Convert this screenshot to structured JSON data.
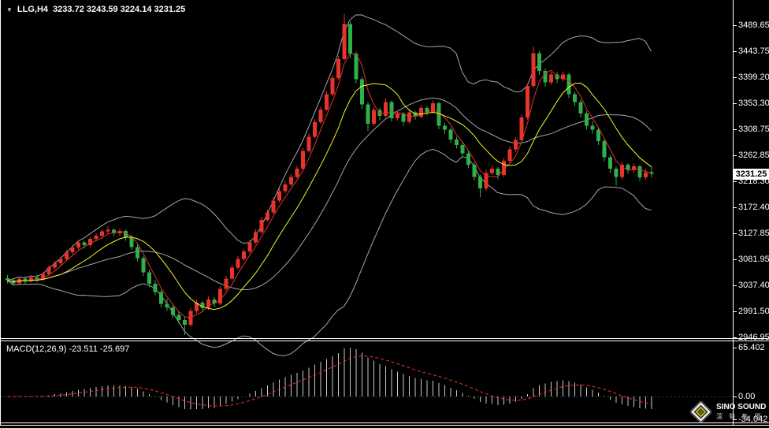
{
  "header": {
    "symbol": "LLG,H4",
    "quote": "3233.72 3243.59 3224.14 3231.25"
  },
  "indicator_label": "MACD(12,26,9) -23.511 -25.697",
  "price_axis": {
    "current": "3231.25",
    "ticks": [
      "3489.65",
      "3443.75",
      "3399.20",
      "3353.30",
      "3308.75",
      "3262.85",
      "3218.30",
      "3172.40",
      "3127.85",
      "3081.95",
      "3037.40",
      "2991.50",
      "2946.95"
    ]
  },
  "macd_axis": {
    "max": "65.402",
    "zero": "0.00",
    "min": "-34.042"
  },
  "logo": {
    "title": "SINO SOUND",
    "subtitle": "漢 聲 集 團"
  },
  "colors": {
    "background": "#000000",
    "up_candle": "#e8352a",
    "down_candle": "#2fb148",
    "bollinger": "#9fa8b0",
    "ma_fast_red": "#e03131",
    "ma_slow_yellow": "#f5f52a",
    "macd_histogram": "#c8c8c8",
    "macd_signal": "#ff2a2a",
    "border": "#ffffff",
    "axis_text": "#ffffff",
    "price_tag_bg": "#ffffff",
    "price_tag_text": "#000000"
  },
  "chart_data": {
    "type": "candlestick",
    "symbol": "LLG",
    "timeframe": "H4",
    "title": "LLG,H4 gold candlestick chart with Bollinger Bands, fast/slow moving averages and MACD(12,26,9)",
    "last_quote": {
      "open": 3233.72,
      "high": 3243.59,
      "low": 3224.14,
      "close": 3231.25
    },
    "price_axis_ticks": [
      3489.65,
      3443.75,
      3399.2,
      3353.3,
      3308.75,
      3262.85,
      3218.3,
      3172.4,
      3127.85,
      3081.95,
      3037.4,
      2991.5,
      2946.95
    ],
    "price_range_visible": [
      2946.95,
      3489.65
    ],
    "current_price": 3231.25,
    "overlays": [
      {
        "name": "bollinger-bands",
        "period": 20,
        "deviation": 2,
        "color": "#9fa8b0"
      },
      {
        "name": "ma-fast",
        "period": 4,
        "color": "#e03131"
      },
      {
        "name": "ma-slow",
        "period": 10,
        "color": "#f5f52a"
      }
    ],
    "indicator": {
      "name": "MACD",
      "params": [
        12,
        26,
        9
      ],
      "current_values": [
        -23.511,
        -25.697
      ],
      "axis_labels": [
        65.402,
        0.0,
        -34.042
      ],
      "histogram_color": "#c8c8c8",
      "signal_style": "red-dashed"
    },
    "candles_format": [
      "open",
      "high",
      "low",
      "close"
    ],
    "candles": [
      [
        3050,
        3055,
        3041,
        3046
      ],
      [
        3046,
        3050,
        3037,
        3041
      ],
      [
        3041,
        3052,
        3039,
        3049
      ],
      [
        3049,
        3053,
        3040,
        3044
      ],
      [
        3044,
        3055,
        3042,
        3051
      ],
      [
        3051,
        3056,
        3043,
        3047
      ],
      [
        3047,
        3060,
        3045,
        3057
      ],
      [
        3057,
        3072,
        3054,
        3068
      ],
      [
        3068,
        3080,
        3064,
        3076
      ],
      [
        3076,
        3087,
        3072,
        3083
      ],
      [
        3083,
        3099,
        3080,
        3095
      ],
      [
        3095,
        3107,
        3091,
        3103
      ],
      [
        3103,
        3116,
        3099,
        3112
      ],
      [
        3112,
        3115,
        3101,
        3107
      ],
      [
        3107,
        3122,
        3104,
        3118
      ],
      [
        3118,
        3128,
        3114,
        3124
      ],
      [
        3124,
        3135,
        3120,
        3131
      ],
      [
        3131,
        3140,
        3127,
        3134
      ],
      [
        3134,
        3137,
        3123,
        3128
      ],
      [
        3128,
        3136,
        3124,
        3132
      ],
      [
        3132,
        3135,
        3115,
        3121
      ],
      [
        3121,
        3125,
        3099,
        3104
      ],
      [
        3104,
        3108,
        3079,
        3085
      ],
      [
        3085,
        3089,
        3054,
        3060
      ],
      [
        3060,
        3065,
        3034,
        3040
      ],
      [
        3040,
        3046,
        3020,
        3026
      ],
      [
        3026,
        3030,
        2999,
        3005
      ],
      [
        3005,
        3014,
        2993,
        2999
      ],
      [
        2999,
        3004,
        2980,
        2986
      ],
      [
        2986,
        2992,
        2970,
        2977
      ],
      [
        2977,
        2983,
        2951,
        2969
      ],
      [
        2969,
        2998,
        2965,
        2993
      ],
      [
        2993,
        3012,
        2989,
        3007
      ],
      [
        3007,
        3011,
        2992,
        2998
      ],
      [
        2998,
        3018,
        2995,
        3013
      ],
      [
        3013,
        3017,
        3000,
        3006
      ],
      [
        3006,
        3036,
        3003,
        3031
      ],
      [
        3031,
        3054,
        3028,
        3049
      ],
      [
        3049,
        3073,
        3046,
        3068
      ],
      [
        3068,
        3088,
        3065,
        3083
      ],
      [
        3083,
        3101,
        3080,
        3096
      ],
      [
        3096,
        3117,
        3093,
        3112
      ],
      [
        3112,
        3135,
        3109,
        3130
      ],
      [
        3130,
        3156,
        3127,
        3151
      ],
      [
        3151,
        3169,
        3148,
        3164
      ],
      [
        3164,
        3190,
        3161,
        3185
      ],
      [
        3185,
        3206,
        3182,
        3201
      ],
      [
        3201,
        3218,
        3198,
        3213
      ],
      [
        3213,
        3231,
        3210,
        3226
      ],
      [
        3226,
        3245,
        3223,
        3240
      ],
      [
        3240,
        3276,
        3237,
        3271
      ],
      [
        3271,
        3301,
        3268,
        3296
      ],
      [
        3296,
        3326,
        3293,
        3321
      ],
      [
        3321,
        3348,
        3318,
        3343
      ],
      [
        3343,
        3375,
        3340,
        3370
      ],
      [
        3370,
        3403,
        3367,
        3398
      ],
      [
        3398,
        3436,
        3395,
        3431
      ],
      [
        3431,
        3509,
        3428,
        3492
      ],
      [
        3492,
        3496,
        3432,
        3440
      ],
      [
        3440,
        3444,
        3388,
        3396
      ],
      [
        3396,
        3400,
        3344,
        3352
      ],
      [
        3352,
        3356,
        3305,
        3318
      ],
      [
        3318,
        3347,
        3314,
        3342
      ],
      [
        3342,
        3346,
        3324,
        3332
      ],
      [
        3332,
        3362,
        3329,
        3356
      ],
      [
        3356,
        3359,
        3322,
        3328
      ],
      [
        3328,
        3341,
        3324,
        3336
      ],
      [
        3336,
        3339,
        3315,
        3322
      ],
      [
        3322,
        3343,
        3318,
        3338
      ],
      [
        3338,
        3341,
        3325,
        3331
      ],
      [
        3331,
        3351,
        3328,
        3346
      ],
      [
        3346,
        3349,
        3333,
        3339
      ],
      [
        3339,
        3359,
        3336,
        3354
      ],
      [
        3354,
        3357,
        3309,
        3315
      ],
      [
        3315,
        3320,
        3301,
        3308
      ],
      [
        3308,
        3312,
        3285,
        3291
      ],
      [
        3291,
        3296,
        3275,
        3281
      ],
      [
        3281,
        3286,
        3261,
        3267
      ],
      [
        3267,
        3271,
        3241,
        3247
      ],
      [
        3247,
        3251,
        3220,
        3226
      ],
      [
        3226,
        3230,
        3191,
        3206
      ],
      [
        3206,
        3238,
        3202,
        3233
      ],
      [
        3233,
        3246,
        3229,
        3240
      ],
      [
        3240,
        3243,
        3222,
        3229
      ],
      [
        3229,
        3259,
        3226,
        3254
      ],
      [
        3254,
        3279,
        3250,
        3274
      ],
      [
        3274,
        3295,
        3270,
        3290
      ],
      [
        3290,
        3334,
        3287,
        3329
      ],
      [
        3329,
        3389,
        3326,
        3384
      ],
      [
        3384,
        3452,
        3381,
        3441
      ],
      [
        3441,
        3445,
        3403,
        3410
      ],
      [
        3410,
        3414,
        3383,
        3390
      ],
      [
        3390,
        3409,
        3386,
        3404
      ],
      [
        3404,
        3408,
        3389,
        3396
      ],
      [
        3396,
        3409,
        3392,
        3404
      ],
      [
        3404,
        3407,
        3363,
        3370
      ],
      [
        3370,
        3374,
        3349,
        3356
      ],
      [
        3356,
        3360,
        3329,
        3336
      ],
      [
        3336,
        3340,
        3308,
        3315
      ],
      [
        3315,
        3323,
        3301,
        3308
      ],
      [
        3308,
        3312,
        3281,
        3288
      ],
      [
        3288,
        3292,
        3253,
        3260
      ],
      [
        3260,
        3264,
        3233,
        3240
      ],
      [
        3240,
        3244,
        3211,
        3226
      ],
      [
        3226,
        3252,
        3222,
        3247
      ],
      [
        3247,
        3250,
        3231,
        3238
      ],
      [
        3238,
        3249,
        3233,
        3244
      ],
      [
        3244,
        3247,
        3219,
        3225
      ],
      [
        3225,
        3239,
        3221,
        3233.7
      ],
      [
        3233.72,
        3243.59,
        3224.14,
        3231.25
      ]
    ]
  }
}
